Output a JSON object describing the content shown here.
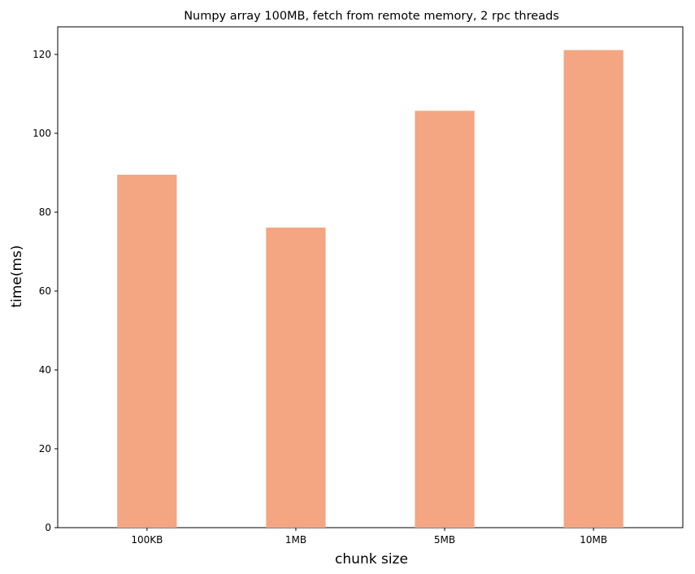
{
  "chart_data": {
    "type": "bar",
    "title": "Numpy array 100MB, fetch from remote memory, 2 rpc threads",
    "xlabel": "chunk size",
    "ylabel": "time(ms)",
    "categories": [
      "100KB",
      "1MB",
      "5MB",
      "10MB"
    ],
    "values": [
      89.5,
      76.1,
      105.7,
      121.1
    ],
    "ylim": [
      0,
      127
    ],
    "yticks": [
      0,
      20,
      40,
      60,
      80,
      100,
      120
    ],
    "bar_color": "#f4a582",
    "grid": false,
    "legend": "none"
  }
}
